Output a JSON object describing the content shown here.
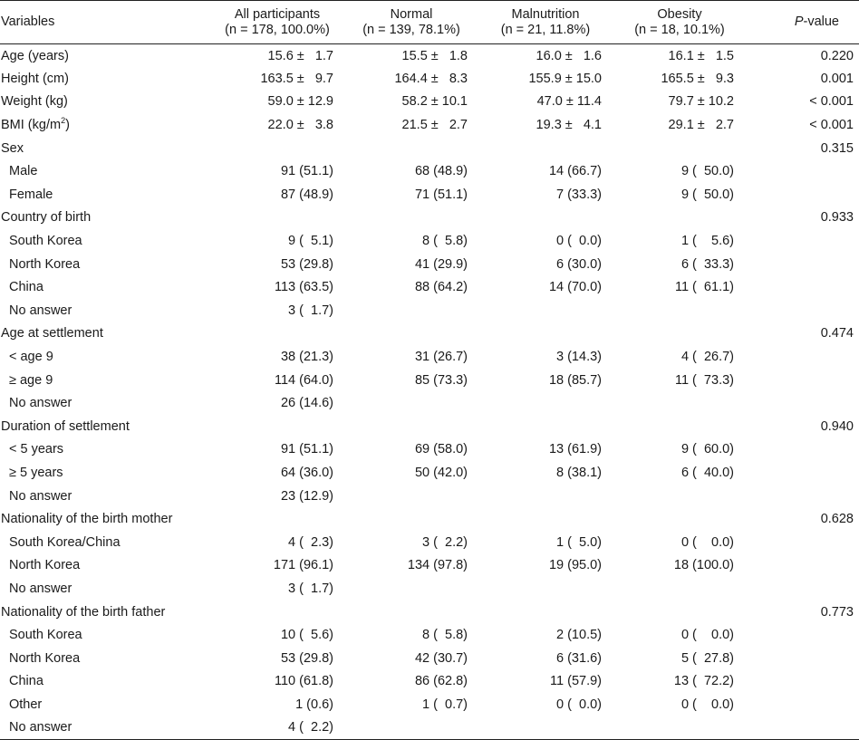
{
  "header": {
    "variables": "Variables",
    "groups": [
      {
        "name": "All participants",
        "n": "(n = 178, 100.0%)"
      },
      {
        "name": "Normal",
        "n": "(n = 139, 78.1%)"
      },
      {
        "name": "Malnutrition",
        "n": "(n = 21, 11.8%)"
      },
      {
        "name": "Obesity",
        "n": "(n = 18, 10.1%)"
      }
    ],
    "p_italic": "P",
    "p_rest": "-value"
  },
  "rows": [
    {
      "label": "Age (years)",
      "indent": false,
      "all": "15.6 ±   1.7",
      "normal": "15.5 ±   1.8",
      "mal": "16.0 ±   1.6",
      "ob": "16.1 ±   1.5",
      "p": "0.220"
    },
    {
      "label": "Height (cm)",
      "indent": false,
      "all": "163.5 ±   9.7",
      "normal": "164.4 ±   8.3",
      "mal": "155.9 ± 15.0",
      "ob": "165.5 ±   9.3",
      "p": "0.001"
    },
    {
      "label": "Weight (kg)",
      "indent": false,
      "all": "59.0 ± 12.9",
      "normal": "58.2 ± 10.1",
      "mal": "47.0 ± 11.4",
      "ob": "79.7 ± 10.2",
      "p": "< 0.001"
    },
    {
      "label": "BMI (kg/m",
      "sup": "2",
      "label_tail": ")",
      "indent": false,
      "all": "22.0 ±   3.8",
      "normal": "21.5 ±   2.7",
      "mal": "19.3 ±   4.1",
      "ob": "29.1 ±   2.7",
      "p": "< 0.001"
    },
    {
      "label": "Sex",
      "indent": false,
      "all": "",
      "normal": "",
      "mal": "",
      "ob": "",
      "p": "0.315"
    },
    {
      "label": "Male",
      "indent": true,
      "all": "91 (51.1)",
      "normal": "68 (48.9)",
      "mal": "14 (66.7)",
      "ob": "9 (  50.0)",
      "p": ""
    },
    {
      "label": "Female",
      "indent": true,
      "all": "87 (48.9)",
      "normal": "71 (51.1)",
      "mal": "7 (33.3)",
      "ob": "9 (  50.0)",
      "p": ""
    },
    {
      "label": "Country of birth",
      "indent": false,
      "all": "",
      "normal": "",
      "mal": "",
      "ob": "",
      "p": "0.933"
    },
    {
      "label": "South Korea",
      "indent": true,
      "all": "9 (  5.1)",
      "normal": "8 (  5.8)",
      "mal": "0 (  0.0)",
      "ob": "1 (    5.6)",
      "p": ""
    },
    {
      "label": "North Korea",
      "indent": true,
      "all": "53 (29.8)",
      "normal": "41 (29.9)",
      "mal": "6 (30.0)",
      "ob": "6 (  33.3)",
      "p": ""
    },
    {
      "label": "China",
      "indent": true,
      "all": "113 (63.5)",
      "normal": "88 (64.2)",
      "mal": "14 (70.0)",
      "ob": "11 (  61.1)",
      "p": ""
    },
    {
      "label": "No answer",
      "indent": true,
      "all": "3 (  1.7)",
      "normal": "",
      "mal": "",
      "ob": "",
      "p": ""
    },
    {
      "label": "Age at settlement",
      "indent": false,
      "all": "",
      "normal": "",
      "mal": "",
      "ob": "",
      "p": "0.474"
    },
    {
      "label": "< age 9",
      "indent": true,
      "all": "38 (21.3)",
      "normal": "31 (26.7)",
      "mal": "3 (14.3)",
      "ob": "4 (  26.7)",
      "p": ""
    },
    {
      "label": "≥ age 9",
      "indent": true,
      "all": "114 (64.0)",
      "normal": "85 (73.3)",
      "mal": "18 (85.7)",
      "ob": "11 (  73.3)",
      "p": ""
    },
    {
      "label": "No answer",
      "indent": true,
      "all": "26 (14.6)",
      "normal": "",
      "mal": "",
      "ob": "",
      "p": ""
    },
    {
      "label": "Duration of settlement",
      "indent": false,
      "all": "",
      "normal": "",
      "mal": "",
      "ob": "",
      "p": "0.940"
    },
    {
      "label": "< 5 years",
      "indent": true,
      "all": "91 (51.1)",
      "normal": "69 (58.0)",
      "mal": "13 (61.9)",
      "ob": "9 (  60.0)",
      "p": ""
    },
    {
      "label": "≥ 5 years",
      "indent": true,
      "all": "64 (36.0)",
      "normal": "50 (42.0)",
      "mal": "8 (38.1)",
      "ob": "6 (  40.0)",
      "p": ""
    },
    {
      "label": "No answer",
      "indent": true,
      "all": "23 (12.9)",
      "normal": "",
      "mal": "",
      "ob": "",
      "p": ""
    },
    {
      "label": "Nationality of the birth mother",
      "indent": false,
      "all": "",
      "normal": "",
      "mal": "",
      "ob": "",
      "p": "0.628"
    },
    {
      "label": "South Korea/China",
      "indent": true,
      "all": "4 (  2.3)",
      "normal": "3 (  2.2)",
      "mal": "1 (  5.0)",
      "ob": "0 (    0.0)",
      "p": ""
    },
    {
      "label": "North Korea",
      "indent": true,
      "all": "171 (96.1)",
      "normal": "134 (97.8)",
      "mal": "19 (95.0)",
      "ob": "18 (100.0)",
      "p": ""
    },
    {
      "label": "No answer",
      "indent": true,
      "all": "3 (  1.7)",
      "normal": "",
      "mal": "",
      "ob": "",
      "p": ""
    },
    {
      "label": "Nationality of the birth father",
      "indent": false,
      "all": "",
      "normal": "",
      "mal": "",
      "ob": "",
      "p": "0.773"
    },
    {
      "label": "South Korea",
      "indent": true,
      "all": "10 (  5.6)",
      "normal": "8 (  5.8)",
      "mal": "2 (10.5)",
      "ob": "0 (    0.0)",
      "p": ""
    },
    {
      "label": "North Korea",
      "indent": true,
      "all": "53 (29.8)",
      "normal": "42 (30.7)",
      "mal": "6 (31.6)",
      "ob": "5 (  27.8)",
      "p": ""
    },
    {
      "label": "China",
      "indent": true,
      "all": "110 (61.8)",
      "normal": "86 (62.8)",
      "mal": "11 (57.9)",
      "ob": "13 (  72.2)",
      "p": ""
    },
    {
      "label": "Other",
      "indent": true,
      "all": "1 (0.6)",
      "normal": "1 (  0.7)",
      "mal": "0 (  0.0)",
      "ob": "0 (    0.0)",
      "p": ""
    },
    {
      "label": "No answer",
      "indent": true,
      "all": "4 (  2.2)",
      "normal": "",
      "mal": "",
      "ob": "",
      "p": ""
    }
  ]
}
